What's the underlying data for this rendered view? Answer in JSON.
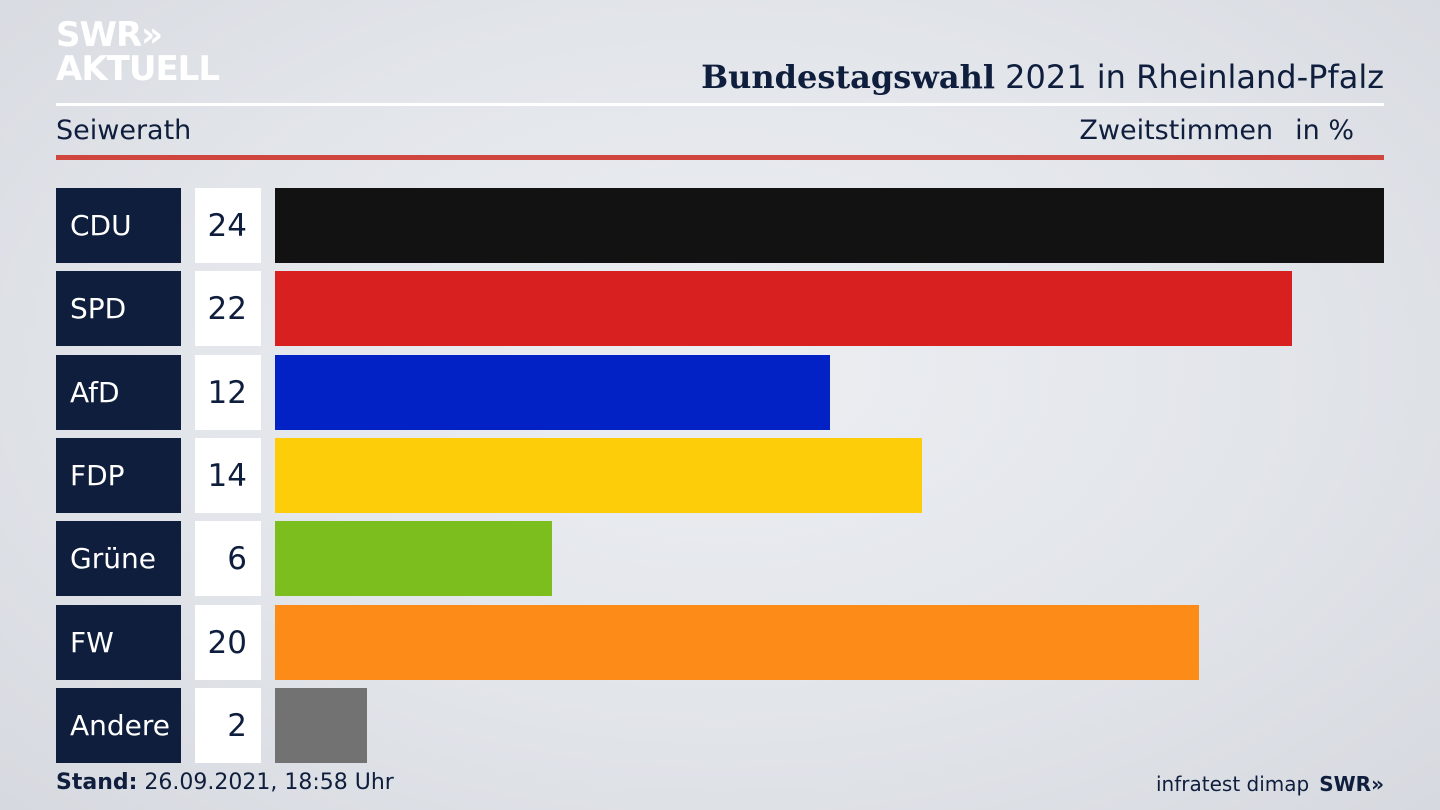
{
  "logo": {
    "line1": "SWR»",
    "line2": "AKTUELL"
  },
  "header": {
    "title_bold": "Bundestagswahl",
    "title_rest": " 2021 in Rheinland-Pfalz"
  },
  "subheader": {
    "location": "Seiwerath",
    "measure": "Zweitstimmen",
    "unit": "in %"
  },
  "footer": {
    "stand_label": "Stand:",
    "stand_value": " 26.09.2021, 18:58 Uhr",
    "source": "infratest dimap",
    "brand": "SWR»"
  },
  "chart_data": {
    "type": "bar",
    "orientation": "horizontal",
    "title": "Bundestagswahl 2021 in Rheinland-Pfalz",
    "xlabel": "Zweitstimmen",
    "unit": "in %",
    "categories": [
      "CDU",
      "SPD",
      "AfD",
      "FDP",
      "Grüne",
      "FW",
      "Andere"
    ],
    "values": [
      24,
      22,
      12,
      14,
      6,
      20,
      2
    ],
    "labels": [
      "24",
      "22",
      "12",
      "14",
      "6",
      "20",
      "2"
    ],
    "colors": [
      "#121212",
      "#d82021",
      "#0222c6",
      "#fecd0a",
      "#7bbe1e",
      "#fd8b17",
      "#727272"
    ],
    "xlim": [
      0,
      24
    ]
  }
}
